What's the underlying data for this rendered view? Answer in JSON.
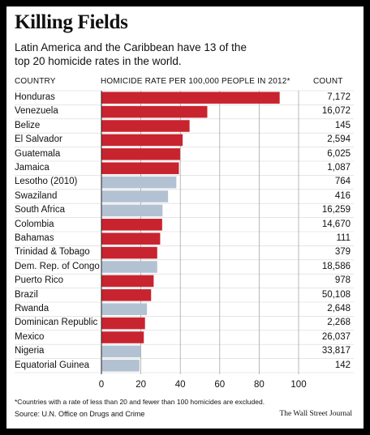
{
  "title": "Killing Fields",
  "subtitle": "Latin America and the Caribbean have 13 of the top 20 homicide rates in the world.",
  "headers": {
    "country": "COUNTRY",
    "rate": "HOMICIDE RATE PER 100,000 PEOPLE IN 2012*",
    "count": "COUNT"
  },
  "colors": {
    "latin_america": "#c8242f",
    "other": "#b3c2d3"
  },
  "chart_data": {
    "type": "bar",
    "orientation": "horizontal",
    "categories": [
      "Honduras",
      "Venezuela",
      "Belize",
      "El Salvador",
      "Guatemala",
      "Jamaica",
      "Lesotho (2010)",
      "Swaziland",
      "South Africa",
      "Colombia",
      "Bahamas",
      "Trinidad & Tobago",
      "Dem. Rep. of Congo",
      "Puerto Rico",
      "Brazil",
      "Rwanda",
      "Dominican Republic",
      "Mexico",
      "Nigeria",
      "Equatorial Guinea"
    ],
    "values": [
      90.4,
      53.7,
      44.7,
      41.2,
      39.9,
      39.3,
      38.0,
      33.8,
      31.0,
      30.8,
      29.8,
      28.3,
      28.3,
      26.5,
      25.2,
      23.1,
      22.1,
      21.5,
      20.0,
      19.3
    ],
    "counts": [
      "7,172",
      "16,072",
      "145",
      "2,594",
      "6,025",
      "1,087",
      "764",
      "416",
      "16,259",
      "14,670",
      "111",
      "379",
      "18,586",
      "978",
      "50,108",
      "2,648",
      "2,268",
      "26,037",
      "33,817",
      "142"
    ],
    "latin_america": [
      true,
      true,
      true,
      true,
      true,
      true,
      false,
      false,
      false,
      true,
      true,
      true,
      false,
      true,
      true,
      false,
      true,
      true,
      false,
      false
    ],
    "xlim": [
      0,
      100
    ],
    "xticks": [
      "0",
      "20",
      "40",
      "60",
      "80",
      "100"
    ],
    "grid": true
  },
  "footnote": "*Countries with a rate of less than 20 and fewer than 100 homicides are excluded.",
  "source": "Source: U.N. Office on Drugs and Crime",
  "credit": "The Wall Street Journal"
}
